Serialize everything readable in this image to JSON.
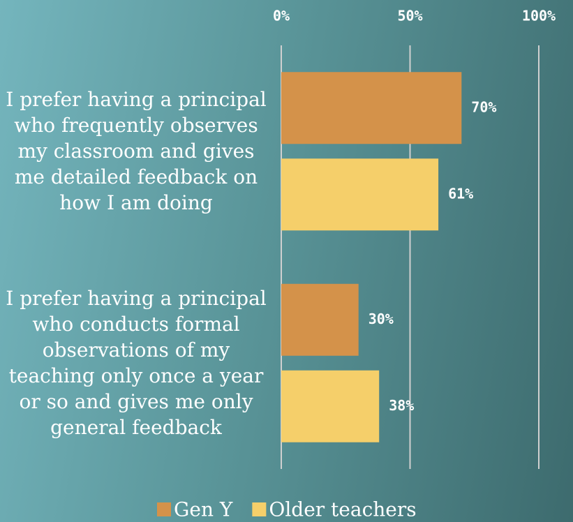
{
  "chart_data": {
    "type": "bar",
    "orientation": "horizontal",
    "categories": [
      "I prefer having a principal who frequently observes my classroom and gives me detailed feedback on how I am doing",
      "I prefer having a principal who conducts formal observations of my teaching only once a year or so and gives me only general feedback"
    ],
    "series": [
      {
        "name": "Gen Y",
        "color": "#d4924a",
        "values": [
          70,
          30
        ],
        "value_labels": [
          "70%",
          "30%"
        ]
      },
      {
        "name": "Older teachers",
        "color": "#f5cf6a",
        "values": [
          61,
          38
        ],
        "value_labels": [
          "61%",
          "38%"
        ]
      }
    ],
    "xlim": [
      0,
      100
    ],
    "xticks": [
      {
        "value": 0,
        "label": "0%"
      },
      {
        "value": 50,
        "label": "50%"
      },
      {
        "value": 100,
        "label": "100%"
      }
    ],
    "grid": true,
    "legend": "bottom"
  }
}
